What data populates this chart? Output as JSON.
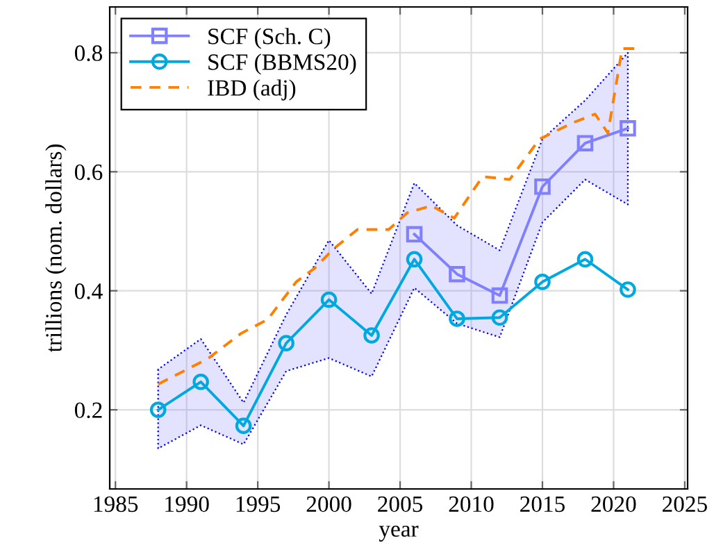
{
  "chart_data": {
    "type": "line",
    "xlabel": "year",
    "ylabel": "trillions (nom. dollars)",
    "xlim": [
      1984.6,
      2025.2
    ],
    "ylim": [
      0.067,
      0.877
    ],
    "xticks": [
      1985,
      1990,
      1995,
      2000,
      2005,
      2010,
      2015,
      2020,
      2025
    ],
    "yticks": [
      {
        "value": 0.2,
        "label": "0.2"
      },
      {
        "value": 0.4,
        "label": "0.4"
      },
      {
        "value": 0.6,
        "label": "0.6"
      },
      {
        "value": 0.8,
        "label": "0.8"
      }
    ],
    "grid": true,
    "legend": "top left",
    "series": [
      {
        "name": "SCF (Sch. C)",
        "color": "#8080ff",
        "marker": "square",
        "line_style": "solid",
        "x": [
          1988,
          1991,
          1994,
          1997,
          2000,
          2003,
          2006,
          2009,
          2012,
          2015,
          2018,
          2021
        ],
        "values": [
          null,
          null,
          null,
          null,
          null,
          null,
          0.495,
          0.428,
          0.392,
          0.575,
          0.648,
          0.673
        ],
        "lower": [
          0.135,
          0.174,
          0.142,
          0.265,
          0.287,
          0.256,
          0.405,
          0.345,
          0.322,
          0.515,
          0.587,
          0.545
        ],
        "upper": [
          0.268,
          0.319,
          0.212,
          0.36,
          0.485,
          0.395,
          0.581,
          0.51,
          0.468,
          0.655,
          0.72,
          0.8
        ]
      },
      {
        "name": "SCF (BBMS20)",
        "color": "#00a8e0",
        "marker": "circle",
        "line_style": "solid",
        "x": [
          1988,
          1991,
          1994,
          1997,
          2000,
          2003,
          2006,
          2009,
          2012,
          2015,
          2018,
          2021
        ],
        "values": [
          0.2,
          0.247,
          0.173,
          0.312,
          0.385,
          0.325,
          0.453,
          0.353,
          0.355,
          0.415,
          0.453,
          0.402
        ]
      },
      {
        "name": "IBD (adj)",
        "color": "#ff8000",
        "marker": "none",
        "line_style": "dashed",
        "x": [
          1988,
          1991.5,
          1993.8,
          1995.7,
          1997.7,
          1999,
          2000.3,
          2002,
          2004.2,
          2005.5,
          2007.2,
          2008.8,
          2010.8,
          2012.7,
          2014.8,
          2017.2,
          2018.7,
          2019.6,
          2020.6,
          2021.6
        ],
        "values": [
          0.243,
          0.286,
          0.328,
          0.352,
          0.415,
          0.438,
          0.47,
          0.503,
          0.503,
          0.531,
          0.543,
          0.522,
          0.592,
          0.587,
          0.655,
          0.683,
          0.697,
          0.665,
          0.807,
          0.807
        ]
      }
    ]
  }
}
